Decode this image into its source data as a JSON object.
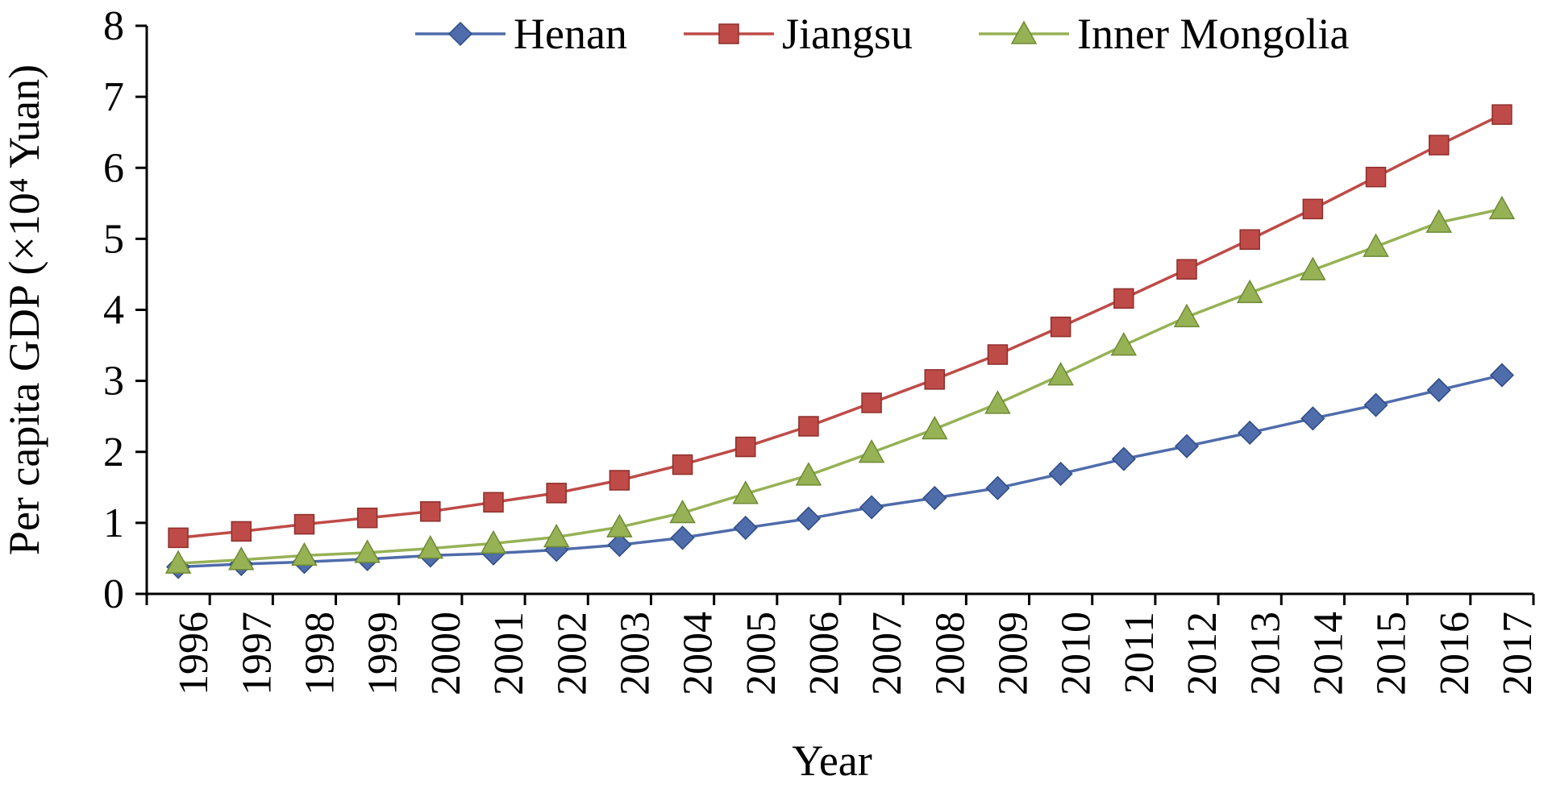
{
  "chart_data": {
    "type": "line",
    "title": "",
    "xlabel": "Year",
    "ylabel": "Per capita GDP (×10⁴ Yuan)",
    "ylim": [
      0,
      8
    ],
    "yticks": [
      "0",
      "1",
      "2",
      "3",
      "4",
      "5",
      "6",
      "7",
      "8"
    ],
    "categories": [
      "1996",
      "1997",
      "1998",
      "1999",
      "2000",
      "2001",
      "2002",
      "2003",
      "2004",
      "2005",
      "2006",
      "2007",
      "2008",
      "2009",
      "2010",
      "2011",
      "2012",
      "2013",
      "2014",
      "2015",
      "2016",
      "2017"
    ],
    "legend_position": "top",
    "grid": false,
    "series": [
      {
        "name": "Henan",
        "color": "#4F6CAB",
        "marker": "diamond",
        "values": [
          0.38,
          0.42,
          0.45,
          0.49,
          0.54,
          0.57,
          0.62,
          0.69,
          0.79,
          0.93,
          1.06,
          1.22,
          1.35,
          1.49,
          1.69,
          1.9,
          2.08,
          2.27,
          2.47,
          2.66,
          2.87,
          3.08
        ]
      },
      {
        "name": "Jiangsu",
        "color": "#BE4B48",
        "marker": "square",
        "values": [
          0.79,
          0.88,
          0.98,
          1.07,
          1.16,
          1.29,
          1.42,
          1.6,
          1.82,
          2.07,
          2.36,
          2.69,
          3.02,
          3.37,
          3.76,
          4.16,
          4.57,
          4.99,
          5.42,
          5.87,
          6.32,
          6.75
        ]
      },
      {
        "name": "Inner Mongolia",
        "color": "#96B255",
        "marker": "triangle",
        "values": [
          0.43,
          0.48,
          0.54,
          0.58,
          0.64,
          0.71,
          0.8,
          0.94,
          1.14,
          1.41,
          1.67,
          1.99,
          2.32,
          2.68,
          3.08,
          3.5,
          3.9,
          4.24,
          4.56,
          4.89,
          5.23,
          5.42
        ]
      }
    ]
  }
}
